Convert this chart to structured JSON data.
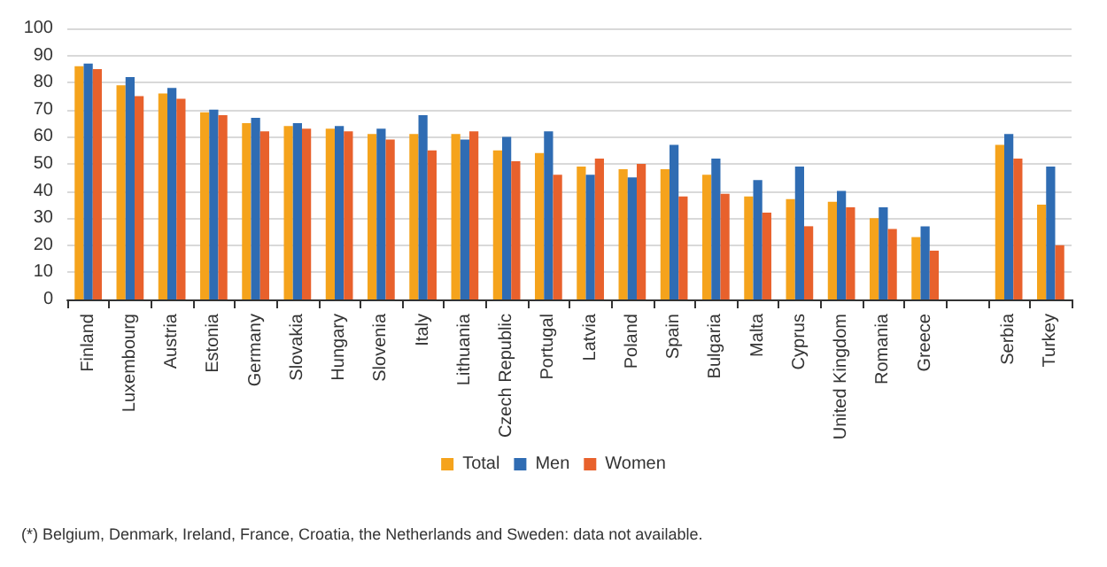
{
  "chart_data": {
    "type": "bar",
    "categories": [
      "Finland",
      "Luxembourg",
      "Austria",
      "Estonia",
      "Germany",
      "Slovakia",
      "Hungary",
      "Slovenia",
      "Italy",
      "Lithuania",
      "Czech Republic",
      "Portugal",
      "Latvia",
      "Poland",
      "Spain",
      "Bulgaria",
      "Malta",
      "Cyprus",
      "United Kingdom",
      "Romania",
      "Greece",
      null,
      "Serbia",
      "Turkey"
    ],
    "series": [
      {
        "name": "Total",
        "color": "#f5a31c",
        "values": [
          86,
          79,
          76,
          69,
          65,
          64,
          63,
          61,
          61,
          61,
          55,
          54,
          49,
          48,
          48,
          46,
          38,
          37,
          36,
          30,
          23,
          null,
          57,
          35
        ]
      },
      {
        "name": "Men",
        "color": "#2f6cb3",
        "values": [
          87,
          82,
          78,
          70,
          67,
          65,
          64,
          63,
          68,
          59,
          60,
          62,
          46,
          45,
          57,
          52,
          44,
          49,
          40,
          34,
          27,
          null,
          61,
          49
        ]
      },
      {
        "name": "Women",
        "color": "#e8612c",
        "values": [
          85,
          75,
          74,
          68,
          62,
          63,
          62,
          59,
          55,
          62,
          51,
          46,
          52,
          50,
          38,
          39,
          32,
          27,
          34,
          26,
          18,
          null,
          52,
          20
        ]
      }
    ],
    "ylim": [
      0,
      100
    ],
    "yticks": [
      0,
      10,
      20,
      30,
      40,
      50,
      60,
      70,
      80,
      90,
      100
    ],
    "grid": "y",
    "legend": "bottom",
    "annotations": [
      "(*) Belgium, Denmark, Ireland, France, Croatia, the Netherlands and Sweden: data not available."
    ]
  }
}
